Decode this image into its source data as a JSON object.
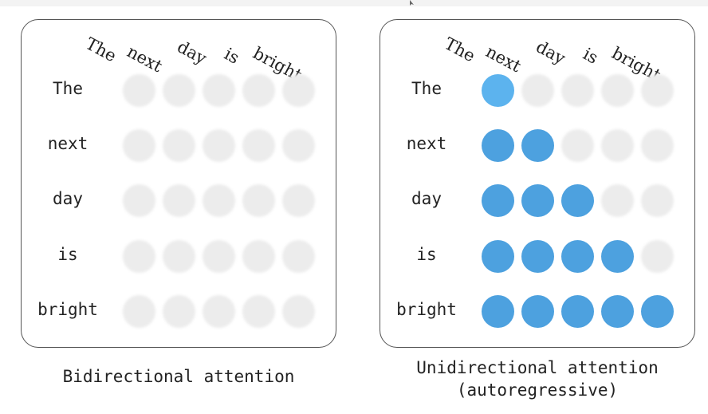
{
  "tokens": [
    "The",
    "next",
    "day",
    "is",
    "bright"
  ],
  "panels": [
    {
      "id": "bidirectional",
      "caption": [
        "Bidirectional attention"
      ],
      "mask": [
        [
          0,
          0,
          0,
          0,
          0
        ],
        [
          0,
          0,
          0,
          0,
          0
        ],
        [
          0,
          0,
          0,
          0,
          0
        ],
        [
          0,
          0,
          0,
          0,
          0
        ],
        [
          0,
          0,
          0,
          0,
          0
        ]
      ]
    },
    {
      "id": "unidirectional",
      "caption": [
        "Unidirectional attention",
        "(autoregressive)"
      ],
      "mask": [
        [
          1,
          0,
          0,
          0,
          0
        ],
        [
          1,
          1,
          0,
          0,
          0
        ],
        [
          1,
          1,
          1,
          0,
          0
        ],
        [
          1,
          1,
          1,
          1,
          0
        ],
        [
          1,
          1,
          1,
          1,
          1
        ]
      ]
    }
  ],
  "colors": {
    "active_dot": "#4da1df",
    "active_dot_first": "#5cb3ee",
    "inactive_dot": "#ececec",
    "border": "#555555"
  }
}
